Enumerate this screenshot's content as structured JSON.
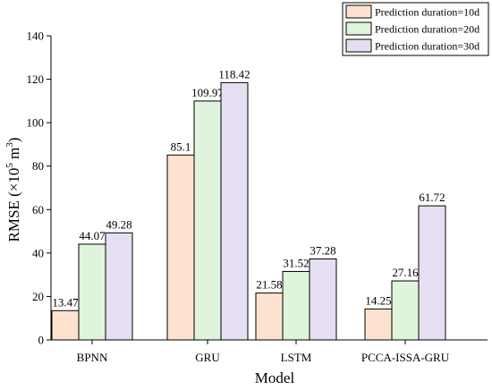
{
  "chart_data": {
    "type": "bar",
    "xlabel": "Model",
    "ylabel_main": "RMSE (×10",
    "ylabel_sup": "5",
    "ylabel_tail": " m",
    "ylabel_sup2": "3",
    "ylabel_end": ")",
    "ylim": [
      0,
      140
    ],
    "yticks": [
      0,
      20,
      40,
      60,
      80,
      100,
      120,
      140
    ],
    "categories": [
      "BPNN",
      "GRU",
      "LSTM",
      "PCCA-ISSA-GRU"
    ],
    "series": [
      {
        "name": "Prediction duration=10d",
        "values": [
          13.47,
          85.1,
          21.58,
          14.25
        ],
        "labels": [
          "13.47",
          "85.1",
          "21.58",
          "14.25"
        ],
        "color": "#fde3cf"
      },
      {
        "name": "Prediction duration=20d",
        "values": [
          44.07,
          109.97,
          31.52,
          27.16
        ],
        "labels": [
          "44.07",
          "109.97",
          "31.52",
          "27.16"
        ],
        "color": "#dff3dd"
      },
      {
        "name": "Prediction duration=30d",
        "values": [
          49.28,
          118.42,
          37.28,
          61.72
        ],
        "labels": [
          "49.28",
          "118.42",
          "37.28",
          "61.72"
        ],
        "color": "#e6dff2"
      }
    ],
    "legend_position": "top-right",
    "grid": false
  }
}
